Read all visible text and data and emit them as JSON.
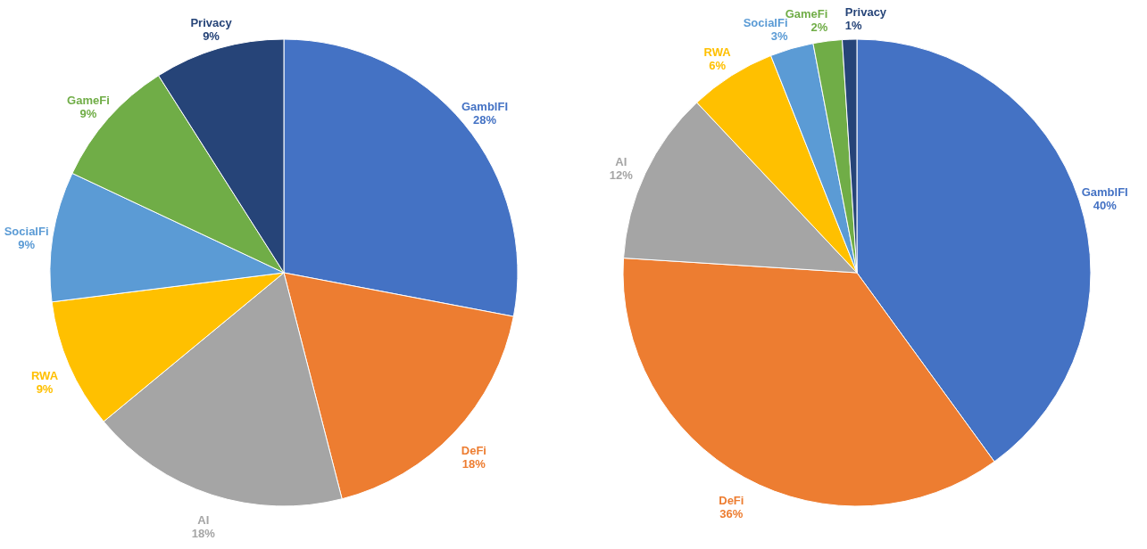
{
  "chart_data": [
    {
      "type": "pie",
      "categories": [
        "GamblFI",
        "DeFi",
        "AI",
        "RWA",
        "SocialFi",
        "GameFi",
        "Privacy"
      ],
      "values": [
        28,
        18,
        18,
        9,
        9,
        9,
        9
      ],
      "value_labels": [
        "28%",
        "18%",
        "18%",
        "9%",
        "9%",
        "9%",
        "9%"
      ],
      "colors": [
        "#4472c4",
        "#ed7d31",
        "#a5a5a5",
        "#ffc000",
        "#5b9bd5",
        "#70ad47",
        "#264478"
      ],
      "legend": false
    },
    {
      "type": "pie",
      "categories": [
        "GamblFI",
        "DeFi",
        "AI",
        "RWA",
        "SocialFi",
        "GameFi",
        "Privacy"
      ],
      "values": [
        40,
        36,
        12,
        6,
        3,
        2,
        1
      ],
      "value_labels": [
        "40%",
        "36%",
        "12%",
        "6%",
        "3%",
        "2%",
        "1%"
      ],
      "colors": [
        "#4472c4",
        "#ed7d31",
        "#a5a5a5",
        "#ffc000",
        "#5b9bd5",
        "#70ad47",
        "#264478"
      ],
      "legend": false
    }
  ]
}
